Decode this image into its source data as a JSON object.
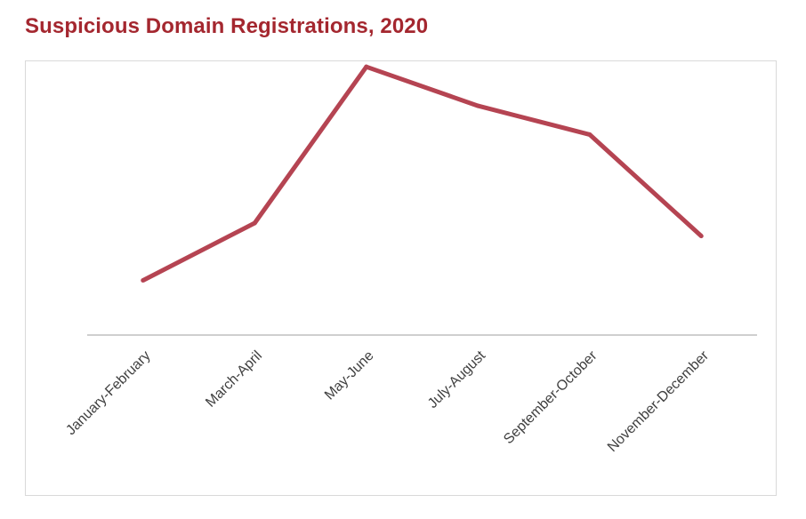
{
  "chart_data": {
    "type": "line",
    "title": "Suspicious Domain Registrations, 2020",
    "xlabel": "",
    "ylabel": "",
    "categories": [
      "January-February",
      "March-April",
      "May-June",
      "July-August",
      "September-October",
      "November-December"
    ],
    "series": [
      {
        "values": [
          21,
          43,
          103,
          88,
          77,
          38
        ]
      }
    ],
    "ylim": [
      0,
      115
    ],
    "y_axis_visible": false,
    "grid": false,
    "legend": "none",
    "line_color": "#b54452",
    "title_color": "#a4272f",
    "axis_color": "#bfbfbf"
  }
}
